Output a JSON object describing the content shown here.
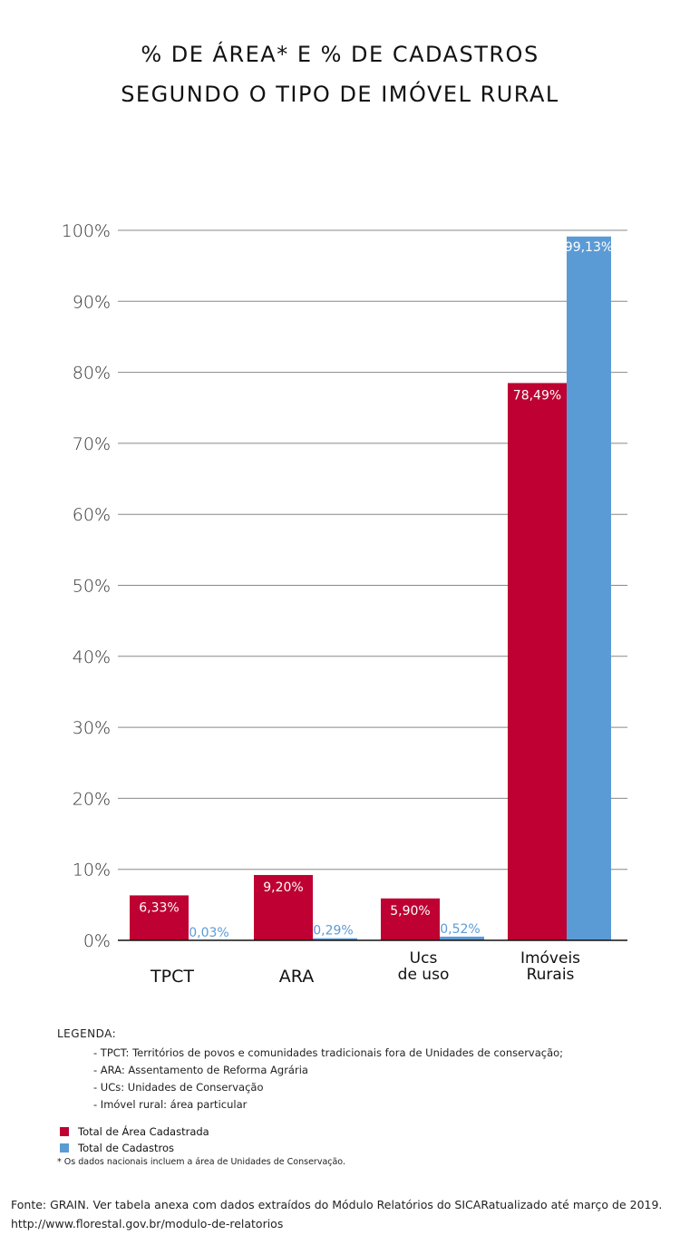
{
  "title_line1": "% DE ÁREA*  E % DE CADASTROS",
  "title_line2": "SEGUNDO O TIPO DE IMÓVEL RURAL",
  "colors": {
    "area": "#be0032",
    "cadastros": "#5b9bd5",
    "grid": "#888888"
  },
  "chart_data": {
    "type": "bar",
    "title": "% DE ÁREA*  E % DE CADASTROS SEGUNDO O TIPO DE IMÓVEL RURAL",
    "categories": [
      [
        "TPCT"
      ],
      [
        "ARA"
      ],
      [
        "Ucs",
        "de uso"
      ],
      [
        "Imóveis",
        "Rurais"
      ]
    ],
    "series": [
      {
        "name": "Total de Área Cadastrada",
        "values": [
          6.33,
          9.2,
          5.9,
          78.49
        ],
        "labels": [
          "6,33%",
          "9,20%",
          "5,90%",
          "78,49%"
        ]
      },
      {
        "name": "Total de Cadastros",
        "values": [
          0.03,
          0.29,
          0.52,
          99.13
        ],
        "labels": [
          "0,03%",
          "0,29%",
          "0,52%",
          "99,13%"
        ]
      }
    ],
    "y_ticks": [
      0,
      10,
      20,
      30,
      40,
      50,
      60,
      70,
      80,
      90,
      100
    ],
    "y_tick_labels": [
      "0%",
      "10%",
      "20%",
      "30%",
      "40%",
      "50%",
      "60%",
      "70%",
      "80%",
      "90%",
      "100%"
    ],
    "ylim": [
      0,
      100
    ],
    "grid": true,
    "legend_position": "bottom-left"
  },
  "legend": {
    "heading": "LEGENDA:",
    "items": [
      "- TPCT: Territórios de povos e comunidades tradicionais fora de Unidades de conservação;",
      "- ARA: Assentamento de Reforma Agrária",
      "- UCs: Unidades de Conservação",
      "- Imóvel rural: área particular"
    ],
    "series_area": "Total de Área Cadastrada",
    "series_cadastros": "Total de Cadastros",
    "footnote": "* Os dados nacionais incluem a área de Unidades de Conservação."
  },
  "source": "Fonte: GRAIN. Ver tabela anexa com dados extraídos do Módulo Relatórios do SICARatualizado até março de 2019. http://www.florestal.gov.br/modulo-de-relatorios"
}
